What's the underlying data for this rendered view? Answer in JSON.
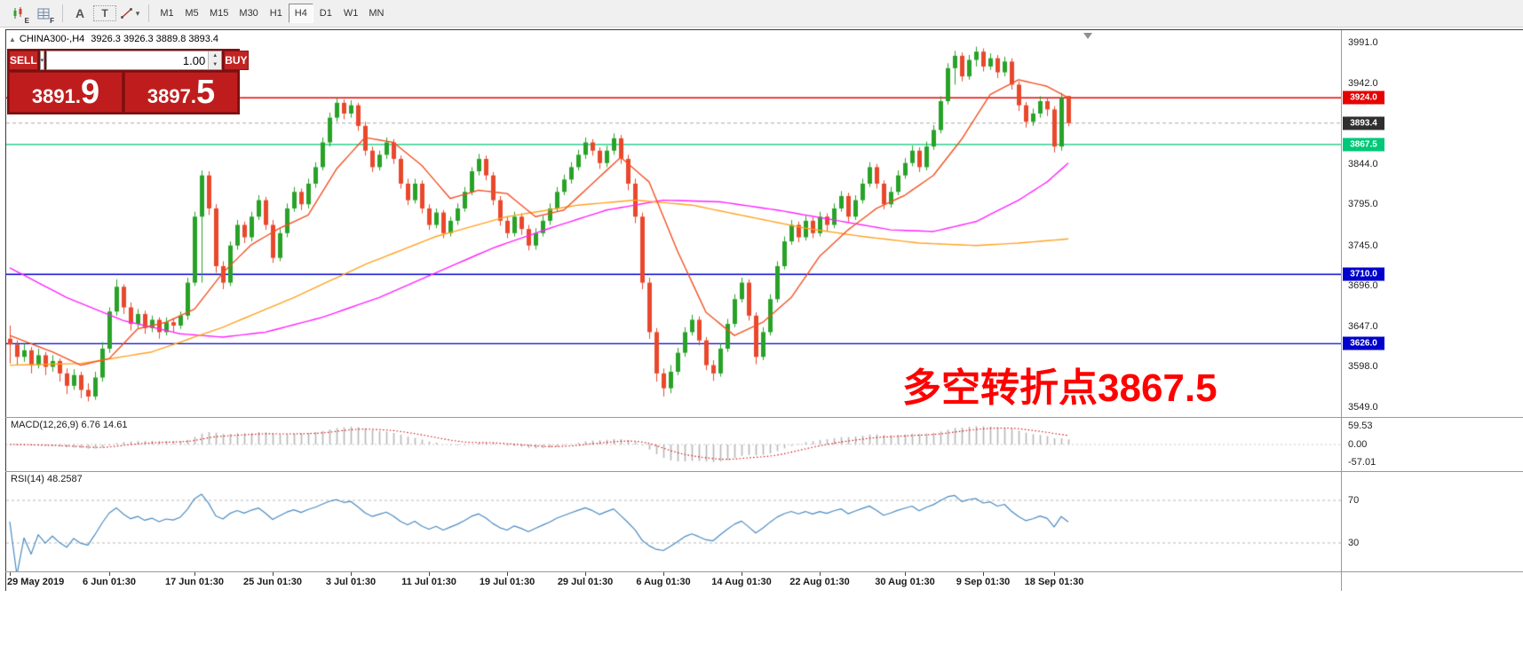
{
  "toolbar": {
    "chart_icon_sub": "E",
    "grid_icon_sub": "F",
    "text_tool_a": "A",
    "text_tool_t": "T",
    "timeframes": [
      "M1",
      "M5",
      "M15",
      "M30",
      "H1",
      "H4",
      "D1",
      "W1",
      "MN"
    ],
    "active_timeframe": "H4"
  },
  "icons": {
    "caret_down": "▾",
    "spin_up": "▲",
    "spin_down": "▼",
    "toggle_up": "▲"
  },
  "symbol_header": {
    "toggle": "▲",
    "title": "CHINA300-,H4",
    "ohlc": "3926.3 3926.3 3889.8 3893.4"
  },
  "trade_panel": {
    "sell_label": "SELL",
    "buy_label": "BUY",
    "volume": "1.00",
    "bid_main": "3891.",
    "bid_pips": "9",
    "ask_main": "3897.",
    "ask_pips": "5"
  },
  "annotation": {
    "text": "多空转折点3867.5",
    "color": "#fe0000"
  },
  "price_axis": {
    "ticks": [
      "3991.0",
      "3942.0",
      "3844.0",
      "3795.0",
      "3745.0",
      "3696.0",
      "3647.0",
      "3598.0",
      "3549.0"
    ],
    "badges": [
      {
        "text": "3924.0",
        "price": 3924.0,
        "bg": "#e60000",
        "name": "resistance-line-badge"
      },
      {
        "text": "3893.4",
        "price": 3893.4,
        "bg": "#2f2f2f",
        "name": "current-price-badge"
      },
      {
        "text": "3867.5",
        "price": 3867.5,
        "bg": "#00c878",
        "name": "pivot-line-badge"
      },
      {
        "text": "3710.0",
        "price": 3710.0,
        "bg": "#0000cd",
        "name": "support-line-badge"
      },
      {
        "text": "3626.0",
        "price": 3626.0,
        "bg": "#0000cd",
        "name": "support-line-badge"
      }
    ]
  },
  "indicators": {
    "macd": {
      "label": "MACD(12,26,9) 6.76 14.61",
      "axis_labels": [
        "59.53",
        "0.00",
        "-57.01"
      ]
    },
    "rsi": {
      "label": "RSI(14) 48.2587",
      "level_labels": [
        "70",
        "30"
      ]
    }
  },
  "date_axis": [
    {
      "label": "29 May 2019",
      "i": 0
    },
    {
      "label": "6 Jun 01:30",
      "i": 14
    },
    {
      "label": "17 Jun 01:30",
      "i": 26
    },
    {
      "label": "25 Jun 01:30",
      "i": 37
    },
    {
      "label": "3 Jul 01:30",
      "i": 48
    },
    {
      "label": "11 Jul 01:30",
      "i": 59
    },
    {
      "label": "19 Jul 01:30",
      "i": 70
    },
    {
      "label": "29 Jul 01:30",
      "i": 81
    },
    {
      "label": "6 Aug 01:30",
      "i": 92
    },
    {
      "label": "14 Aug 01:30",
      "i": 103
    },
    {
      "label": "22 Aug 01:30",
      "i": 114
    },
    {
      "label": "30 Aug 01:30",
      "i": 126
    },
    {
      "label": "9 Sep 01:30",
      "i": 137
    },
    {
      "label": "18 Sep 01:30",
      "i": 147
    }
  ],
  "chart_data": {
    "type": "candlestick",
    "symbol": "CHINA300-",
    "timeframe": "H4",
    "y_axis": {
      "max": 3991.0,
      "min": 3549.0
    },
    "current_price": 3893.4,
    "hlines": [
      {
        "price": 3924.0,
        "color": "#e60000"
      },
      {
        "price": 3867.5,
        "color": "#00c878"
      },
      {
        "price": 3710.0,
        "color": "#0000cd"
      },
      {
        "price": 3626.0,
        "color": "#0000cd"
      }
    ],
    "colors": {
      "bull": "#28a228",
      "bear": "#e8482c",
      "ma_fast": "#f25022",
      "ma_mid": "#ffa21f",
      "ma_slow": "#ff22ff",
      "macd_hist": "#b6b6b6",
      "macd_signal": "#d40000",
      "rsi": "#4a8ac0",
      "current_price_line": "#a8a8a8",
      "level_dashed": "#b8b8b8"
    },
    "candles": [
      [
        3632,
        3648,
        3602,
        3625
      ],
      [
        3625,
        3630,
        3600,
        3610
      ],
      [
        3610,
        3626,
        3604,
        3618
      ],
      [
        3618,
        3622,
        3590,
        3600
      ],
      [
        3600,
        3620,
        3596,
        3612
      ],
      [
        3612,
        3616,
        3588,
        3598
      ],
      [
        3598,
        3612,
        3592,
        3605
      ],
      [
        3605,
        3608,
        3580,
        3590
      ],
      [
        3590,
        3596,
        3565,
        3575
      ],
      [
        3575,
        3595,
        3570,
        3588
      ],
      [
        3588,
        3592,
        3560,
        3570
      ],
      [
        3570,
        3578,
        3556,
        3562
      ],
      [
        3562,
        3592,
        3558,
        3585
      ],
      [
        3585,
        3628,
        3580,
        3620
      ],
      [
        3620,
        3670,
        3615,
        3665
      ],
      [
        3665,
        3704,
        3660,
        3695
      ],
      [
        3695,
        3698,
        3662,
        3670
      ],
      [
        3670,
        3676,
        3642,
        3650
      ],
      [
        3650,
        3668,
        3645,
        3662
      ],
      [
        3662,
        3666,
        3638,
        3645
      ],
      [
        3645,
        3660,
        3640,
        3655
      ],
      [
        3655,
        3658,
        3632,
        3640
      ],
      [
        3640,
        3658,
        3636,
        3652
      ],
      [
        3652,
        3656,
        3640,
        3648
      ],
      [
        3648,
        3665,
        3644,
        3660
      ],
      [
        3660,
        3706,
        3655,
        3700
      ],
      [
        3700,
        3786,
        3696,
        3780
      ],
      [
        3780,
        3836,
        3700,
        3830
      ],
      [
        3830,
        3835,
        3782,
        3790
      ],
      [
        3790,
        3795,
        3712,
        3720
      ],
      [
        3720,
        3726,
        3692,
        3700
      ],
      [
        3700,
        3750,
        3696,
        3745
      ],
      [
        3745,
        3776,
        3740,
        3770
      ],
      [
        3770,
        3774,
        3748,
        3755
      ],
      [
        3755,
        3786,
        3750,
        3780
      ],
      [
        3780,
        3806,
        3776,
        3800
      ],
      [
        3800,
        3804,
        3764,
        3770
      ],
      [
        3770,
        3776,
        3724,
        3730
      ],
      [
        3730,
        3766,
        3726,
        3760
      ],
      [
        3760,
        3796,
        3755,
        3790
      ],
      [
        3790,
        3816,
        3786,
        3810
      ],
      [
        3810,
        3814,
        3788,
        3795
      ],
      [
        3795,
        3826,
        3790,
        3820
      ],
      [
        3820,
        3846,
        3815,
        3840
      ],
      [
        3840,
        3876,
        3836,
        3870
      ],
      [
        3870,
        3906,
        3865,
        3900
      ],
      [
        3900,
        3924,
        3895,
        3918
      ],
      [
        3918,
        3922,
        3898,
        3905
      ],
      [
        3905,
        3921,
        3900,
        3915
      ],
      [
        3915,
        3918,
        3884,
        3890
      ],
      [
        3890,
        3895,
        3854,
        3860
      ],
      [
        3860,
        3865,
        3834,
        3840
      ],
      [
        3840,
        3860,
        3836,
        3855
      ],
      [
        3855,
        3876,
        3850,
        3870
      ],
      [
        3870,
        3874,
        3844,
        3850
      ],
      [
        3850,
        3854,
        3814,
        3820
      ],
      [
        3820,
        3826,
        3794,
        3800
      ],
      [
        3800,
        3826,
        3796,
        3820
      ],
      [
        3820,
        3824,
        3784,
        3790
      ],
      [
        3790,
        3795,
        3764,
        3770
      ],
      [
        3770,
        3790,
        3766,
        3785
      ],
      [
        3785,
        3788,
        3754,
        3760
      ],
      [
        3760,
        3780,
        3756,
        3775
      ],
      [
        3775,
        3796,
        3770,
        3790
      ],
      [
        3790,
        3816,
        3786,
        3810
      ],
      [
        3810,
        3840,
        3806,
        3835
      ],
      [
        3835,
        3856,
        3830,
        3850
      ],
      [
        3850,
        3854,
        3824,
        3830
      ],
      [
        3830,
        3834,
        3794,
        3800
      ],
      [
        3800,
        3805,
        3769,
        3775
      ],
      [
        3775,
        3780,
        3754,
        3760
      ],
      [
        3760,
        3786,
        3756,
        3780
      ],
      [
        3780,
        3784,
        3758,
        3765
      ],
      [
        3765,
        3770,
        3739,
        3745
      ],
      [
        3745,
        3766,
        3740,
        3760
      ],
      [
        3760,
        3781,
        3756,
        3775
      ],
      [
        3775,
        3796,
        3770,
        3790
      ],
      [
        3790,
        3816,
        3786,
        3810
      ],
      [
        3810,
        3831,
        3806,
        3825
      ],
      [
        3825,
        3846,
        3820,
        3840
      ],
      [
        3840,
        3861,
        3836,
        3855
      ],
      [
        3855,
        3876,
        3850,
        3870
      ],
      [
        3870,
        3874,
        3854,
        3860
      ],
      [
        3860,
        3864,
        3838,
        3845
      ],
      [
        3845,
        3866,
        3840,
        3860
      ],
      [
        3860,
        3881,
        3855,
        3875
      ],
      [
        3875,
        3879,
        3844,
        3850
      ],
      [
        3850,
        3855,
        3812,
        3820
      ],
      [
        3820,
        3826,
        3772,
        3780
      ],
      [
        3780,
        3785,
        3692,
        3700
      ],
      [
        3700,
        3706,
        3632,
        3640
      ],
      [
        3640,
        3645,
        3580,
        3590
      ],
      [
        3590,
        3596,
        3562,
        3572
      ],
      [
        3572,
        3600,
        3566,
        3592
      ],
      [
        3592,
        3621,
        3588,
        3615
      ],
      [
        3615,
        3646,
        3610,
        3640
      ],
      [
        3640,
        3661,
        3636,
        3655
      ],
      [
        3655,
        3659,
        3624,
        3630
      ],
      [
        3630,
        3634,
        3594,
        3600
      ],
      [
        3600,
        3606,
        3581,
        3590
      ],
      [
        3590,
        3626,
        3586,
        3620
      ],
      [
        3620,
        3656,
        3616,
        3650
      ],
      [
        3650,
        3686,
        3646,
        3680
      ],
      [
        3680,
        3706,
        3676,
        3700
      ],
      [
        3700,
        3704,
        3654,
        3660
      ],
      [
        3660,
        3664,
        3601,
        3610
      ],
      [
        3610,
        3646,
        3606,
        3640
      ],
      [
        3640,
        3686,
        3636,
        3680
      ],
      [
        3680,
        3726,
        3676,
        3720
      ],
      [
        3720,
        3756,
        3716,
        3750
      ],
      [
        3750,
        3776,
        3746,
        3770
      ],
      [
        3770,
        3774,
        3749,
        3755
      ],
      [
        3755,
        3781,
        3751,
        3775
      ],
      [
        3775,
        3779,
        3754,
        3760
      ],
      [
        3760,
        3786,
        3756,
        3780
      ],
      [
        3780,
        3784,
        3762,
        3770
      ],
      [
        3770,
        3796,
        3766,
        3790
      ],
      [
        3790,
        3811,
        3786,
        3805
      ],
      [
        3805,
        3809,
        3774,
        3780
      ],
      [
        3780,
        3806,
        3776,
        3800
      ],
      [
        3800,
        3826,
        3796,
        3820
      ],
      [
        3820,
        3846,
        3816,
        3840
      ],
      [
        3840,
        3844,
        3814,
        3820
      ],
      [
        3820,
        3824,
        3789,
        3795
      ],
      [
        3795,
        3816,
        3791,
        3810
      ],
      [
        3810,
        3836,
        3806,
        3830
      ],
      [
        3830,
        3851,
        3826,
        3845
      ],
      [
        3845,
        3866,
        3841,
        3860
      ],
      [
        3860,
        3864,
        3834,
        3840
      ],
      [
        3840,
        3871,
        3836,
        3865
      ],
      [
        3865,
        3891,
        3861,
        3885
      ],
      [
        3885,
        3926,
        3881,
        3920
      ],
      [
        3920,
        3966,
        3916,
        3960
      ],
      [
        3960,
        3981,
        3940,
        3975
      ],
      [
        3975,
        3979,
        3944,
        3950
      ],
      [
        3950,
        3976,
        3946,
        3970
      ],
      [
        3970,
        3986,
        3962,
        3980
      ],
      [
        3980,
        3984,
        3956,
        3962
      ],
      [
        3962,
        3978,
        3958,
        3972
      ],
      [
        3972,
        3976,
        3948,
        3955
      ],
      [
        3955,
        3974,
        3950,
        3968
      ],
      [
        3968,
        3972,
        3934,
        3940
      ],
      [
        3940,
        3944,
        3908,
        3915
      ],
      [
        3915,
        3919,
        3888,
        3895
      ],
      [
        3895,
        3911,
        3890,
        3905
      ],
      [
        3905,
        3926,
        3900,
        3920
      ],
      [
        3920,
        3924,
        3902,
        3910
      ],
      [
        3910,
        3914,
        3858,
        3865
      ],
      [
        3865,
        3930,
        3860,
        3924
      ],
      [
        3926.3,
        3926.3,
        3889.8,
        3893.4
      ]
    ],
    "ma_fast_anchors": [
      [
        0,
        3636
      ],
      [
        6,
        3616
      ],
      [
        10,
        3600
      ],
      [
        14,
        3608
      ],
      [
        18,
        3644
      ],
      [
        22,
        3652
      ],
      [
        26,
        3668
      ],
      [
        30,
        3712
      ],
      [
        34,
        3746
      ],
      [
        38,
        3766
      ],
      [
        42,
        3782
      ],
      [
        46,
        3838
      ],
      [
        50,
        3876
      ],
      [
        54,
        3870
      ],
      [
        58,
        3842
      ],
      [
        62,
        3802
      ],
      [
        66,
        3812
      ],
      [
        70,
        3808
      ],
      [
        74,
        3780
      ],
      [
        78,
        3788
      ],
      [
        82,
        3820
      ],
      [
        86,
        3852
      ],
      [
        90,
        3822
      ],
      [
        94,
        3738
      ],
      [
        98,
        3664
      ],
      [
        102,
        3636
      ],
      [
        106,
        3652
      ],
      [
        110,
        3682
      ],
      [
        114,
        3732
      ],
      [
        118,
        3764
      ],
      [
        122,
        3790
      ],
      [
        126,
        3806
      ],
      [
        130,
        3830
      ],
      [
        134,
        3874
      ],
      [
        138,
        3928
      ],
      [
        142,
        3946
      ],
      [
        146,
        3938
      ],
      [
        149,
        3924
      ]
    ],
    "ma_mid_anchors": [
      [
        0,
        3600
      ],
      [
        10,
        3602
      ],
      [
        20,
        3616
      ],
      [
        30,
        3646
      ],
      [
        40,
        3682
      ],
      [
        50,
        3722
      ],
      [
        60,
        3756
      ],
      [
        70,
        3780
      ],
      [
        80,
        3794
      ],
      [
        88,
        3800
      ],
      [
        96,
        3794
      ],
      [
        104,
        3780
      ],
      [
        112,
        3766
      ],
      [
        120,
        3756
      ],
      [
        128,
        3748
      ],
      [
        136,
        3745
      ],
      [
        142,
        3748
      ],
      [
        149,
        3753
      ]
    ],
    "ma_slow_anchors": [
      [
        0,
        3718
      ],
      [
        8,
        3682
      ],
      [
        16,
        3654
      ],
      [
        24,
        3638
      ],
      [
        30,
        3634
      ],
      [
        36,
        3640
      ],
      [
        44,
        3658
      ],
      [
        52,
        3682
      ],
      [
        60,
        3712
      ],
      [
        68,
        3742
      ],
      [
        76,
        3766
      ],
      [
        84,
        3788
      ],
      [
        92,
        3800
      ],
      [
        100,
        3798
      ],
      [
        108,
        3788
      ],
      [
        116,
        3776
      ],
      [
        124,
        3764
      ],
      [
        130,
        3762
      ],
      [
        136,
        3774
      ],
      [
        142,
        3800
      ],
      [
        146,
        3822
      ],
      [
        149,
        3845
      ]
    ]
  }
}
